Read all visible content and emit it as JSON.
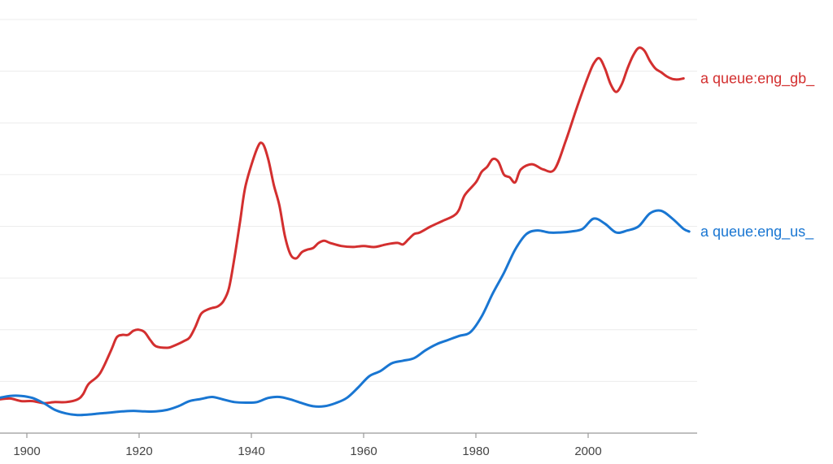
{
  "chart_data": {
    "type": "line",
    "title": "",
    "xlabel": "",
    "ylabel": "",
    "xlim": [
      1895,
      2019
    ],
    "ylim": [
      0,
      8
    ],
    "grid": true,
    "x_ticks": [
      1900,
      1920,
      1940,
      1960,
      1980,
      2000
    ],
    "legend": "inline-right",
    "series": [
      {
        "name": "a queue:eng_gb_",
        "color": "#d32f2f",
        "points": [
          [
            1895,
            0.65
          ],
          [
            1897,
            0.67
          ],
          [
            1899,
            0.62
          ],
          [
            1901,
            0.62
          ],
          [
            1903,
            0.58
          ],
          [
            1905,
            0.6
          ],
          [
            1907,
            0.6
          ],
          [
            1909,
            0.65
          ],
          [
            1910,
            0.75
          ],
          [
            1911,
            0.95
          ],
          [
            1913,
            1.15
          ],
          [
            1915,
            1.6
          ],
          [
            1916,
            1.85
          ],
          [
            1917,
            1.9
          ],
          [
            1918,
            1.9
          ],
          [
            1919,
            1.98
          ],
          [
            1920,
            2.0
          ],
          [
            1921,
            1.95
          ],
          [
            1922,
            1.8
          ],
          [
            1923,
            1.68
          ],
          [
            1925,
            1.65
          ],
          [
            1926,
            1.68
          ],
          [
            1928,
            1.78
          ],
          [
            1929,
            1.85
          ],
          [
            1930,
            2.05
          ],
          [
            1931,
            2.3
          ],
          [
            1932,
            2.38
          ],
          [
            1933,
            2.42
          ],
          [
            1934,
            2.45
          ],
          [
            1935,
            2.55
          ],
          [
            1936,
            2.8
          ],
          [
            1937,
            3.4
          ],
          [
            1938,
            4.1
          ],
          [
            1939,
            4.8
          ],
          [
            1941,
            5.5
          ],
          [
            1942,
            5.6
          ],
          [
            1943,
            5.3
          ],
          [
            1944,
            4.8
          ],
          [
            1945,
            4.4
          ],
          [
            1946,
            3.8
          ],
          [
            1947,
            3.45
          ],
          [
            1948,
            3.38
          ],
          [
            1949,
            3.5
          ],
          [
            1950,
            3.55
          ],
          [
            1951,
            3.58
          ],
          [
            1952,
            3.68
          ],
          [
            1953,
            3.72
          ],
          [
            1954,
            3.68
          ],
          [
            1956,
            3.62
          ],
          [
            1958,
            3.6
          ],
          [
            1960,
            3.62
          ],
          [
            1962,
            3.6
          ],
          [
            1964,
            3.65
          ],
          [
            1966,
            3.68
          ],
          [
            1967,
            3.65
          ],
          [
            1968,
            3.75
          ],
          [
            1969,
            3.85
          ],
          [
            1970,
            3.88
          ],
          [
            1972,
            4.0
          ],
          [
            1974,
            4.1
          ],
          [
            1976,
            4.2
          ],
          [
            1977,
            4.32
          ],
          [
            1978,
            4.6
          ],
          [
            1980,
            4.85
          ],
          [
            1981,
            5.05
          ],
          [
            1982,
            5.15
          ],
          [
            1983,
            5.3
          ],
          [
            1984,
            5.25
          ],
          [
            1985,
            5.0
          ],
          [
            1986,
            4.95
          ],
          [
            1987,
            4.85
          ],
          [
            1988,
            5.1
          ],
          [
            1990,
            5.2
          ],
          [
            1992,
            5.1
          ],
          [
            1994,
            5.1
          ],
          [
            1996,
            5.65
          ],
          [
            1998,
            6.3
          ],
          [
            2000,
            6.9
          ],
          [
            2001,
            7.15
          ],
          [
            2002,
            7.25
          ],
          [
            2003,
            7.05
          ],
          [
            2004,
            6.75
          ],
          [
            2005,
            6.6
          ],
          [
            2006,
            6.75
          ],
          [
            2007,
            7.05
          ],
          [
            2008,
            7.3
          ],
          [
            2009,
            7.45
          ],
          [
            2010,
            7.4
          ],
          [
            2011,
            7.2
          ],
          [
            2012,
            7.05
          ],
          [
            2013,
            6.98
          ],
          [
            2014,
            6.9
          ],
          [
            2015,
            6.85
          ],
          [
            2016,
            6.84
          ],
          [
            2017,
            6.86
          ]
        ]
      },
      {
        "name": "a queue:eng_us_",
        "color": "#1976d2",
        "points": [
          [
            1895,
            0.68
          ],
          [
            1897,
            0.72
          ],
          [
            1899,
            0.72
          ],
          [
            1901,
            0.68
          ],
          [
            1903,
            0.58
          ],
          [
            1905,
            0.45
          ],
          [
            1907,
            0.38
          ],
          [
            1909,
            0.35
          ],
          [
            1911,
            0.36
          ],
          [
            1913,
            0.38
          ],
          [
            1915,
            0.4
          ],
          [
            1917,
            0.42
          ],
          [
            1919,
            0.43
          ],
          [
            1921,
            0.42
          ],
          [
            1923,
            0.42
          ],
          [
            1925,
            0.45
          ],
          [
            1927,
            0.52
          ],
          [
            1929,
            0.62
          ],
          [
            1931,
            0.66
          ],
          [
            1933,
            0.7
          ],
          [
            1935,
            0.65
          ],
          [
            1937,
            0.6
          ],
          [
            1939,
            0.59
          ],
          [
            1941,
            0.6
          ],
          [
            1943,
            0.68
          ],
          [
            1945,
            0.7
          ],
          [
            1947,
            0.65
          ],
          [
            1949,
            0.58
          ],
          [
            1951,
            0.52
          ],
          [
            1953,
            0.52
          ],
          [
            1955,
            0.58
          ],
          [
            1957,
            0.68
          ],
          [
            1959,
            0.88
          ],
          [
            1961,
            1.1
          ],
          [
            1963,
            1.2
          ],
          [
            1965,
            1.35
          ],
          [
            1967,
            1.4
          ],
          [
            1969,
            1.45
          ],
          [
            1971,
            1.6
          ],
          [
            1973,
            1.72
          ],
          [
            1975,
            1.8
          ],
          [
            1977,
            1.88
          ],
          [
            1979,
            1.95
          ],
          [
            1981,
            2.25
          ],
          [
            1983,
            2.7
          ],
          [
            1985,
            3.1
          ],
          [
            1987,
            3.55
          ],
          [
            1989,
            3.85
          ],
          [
            1991,
            3.92
          ],
          [
            1993,
            3.88
          ],
          [
            1995,
            3.88
          ],
          [
            1997,
            3.9
          ],
          [
            1999,
            3.95
          ],
          [
            2001,
            4.15
          ],
          [
            2003,
            4.05
          ],
          [
            2005,
            3.88
          ],
          [
            2007,
            3.92
          ],
          [
            2009,
            4.0
          ],
          [
            2011,
            4.25
          ],
          [
            2013,
            4.3
          ],
          [
            2015,
            4.15
          ],
          [
            2017,
            3.95
          ],
          [
            2018,
            3.9
          ]
        ]
      }
    ]
  }
}
